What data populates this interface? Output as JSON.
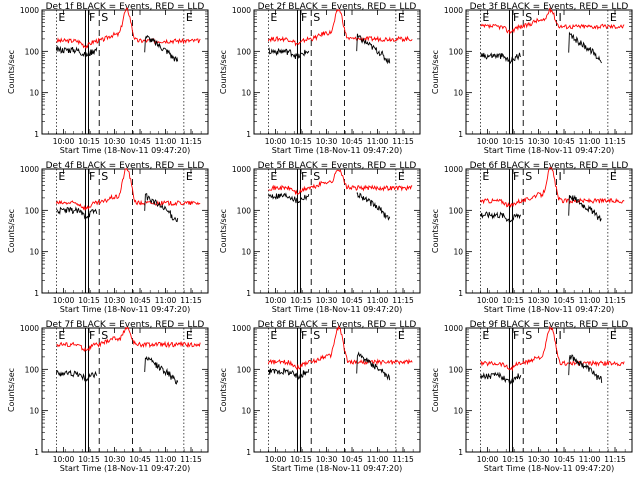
{
  "figure": {
    "legend_text": "BLACK = Events, RED = LLD",
    "series_colors": {
      "events": "#000000",
      "lld": "#ff0000"
    },
    "ylabel": "Counts/sec",
    "xlabel": "Start Time (18-Nov-11 09:47:20)"
  },
  "chart_data": [
    {
      "title": "Det 1f BLACK = Events, RED = LLD",
      "type": "line",
      "scale_y": "log",
      "ylim": [
        1,
        1000
      ],
      "yticks": [
        "1",
        "10",
        "100",
        "1000"
      ],
      "xticks": [
        "10:00",
        "10:15",
        "10:30",
        "10:45",
        "11:00",
        "11:15"
      ],
      "xlabel": "Start Time (18-Nov-11 09:47:20)",
      "ylabel": "Counts/sec",
      "markers": [
        "E",
        "F",
        "S",
        "E"
      ],
      "series": [
        {
          "color": "#ff0000",
          "base": 180,
          "peak": 1000
        },
        {
          "color": "#000000",
          "base": 110,
          "peak": 240
        }
      ]
    },
    {
      "title": "Det 2f BLACK = Events, RED = LLD",
      "type": "line",
      "scale_y": "log",
      "ylim": [
        1,
        1000
      ],
      "yticks": [
        "1",
        "10",
        "100",
        "1000"
      ],
      "xticks": [
        "10:00",
        "10:15",
        "10:30",
        "10:45",
        "11:00",
        "11:15"
      ],
      "xlabel": "Start Time (18-Nov-11 09:47:20)",
      "ylabel": "Counts/sec",
      "markers": [
        "E",
        "F",
        "S",
        "E"
      ],
      "series": [
        {
          "color": "#ff0000",
          "base": 200,
          "peak": 1000
        },
        {
          "color": "#000000",
          "base": 100,
          "peak": 230
        }
      ]
    },
    {
      "title": "Det 3f BLACK = Events, RED = LLD",
      "type": "line",
      "scale_y": "log",
      "ylim": [
        1,
        1000
      ],
      "yticks": [
        "1",
        "10",
        "100",
        "1000"
      ],
      "xticks": [
        "10:00",
        "10:15",
        "10:30",
        "10:45",
        "11:00",
        "11:15"
      ],
      "xlabel": "Start Time (18-Nov-11 09:47:20)",
      "ylabel": "Counts/sec",
      "markers": [
        "E",
        "F",
        "S",
        "I",
        "E"
      ],
      "series": [
        {
          "color": "#ff0000",
          "base": 400,
          "peak": 1000
        },
        {
          "color": "#000000",
          "base": 80,
          "peak": 250
        }
      ]
    },
    {
      "title": "Det 4f BLACK = Events, RED = LLD",
      "type": "line",
      "scale_y": "log",
      "ylim": [
        1,
        1000
      ],
      "yticks": [
        "1",
        "10",
        "100",
        "1000"
      ],
      "xticks": [
        "10:00",
        "10:15",
        "10:30",
        "10:45",
        "11:00",
        "11:15"
      ],
      "xlabel": "Start Time (18-Nov-11 09:47:20)",
      "ylabel": "Counts/sec",
      "markers": [
        "E",
        "F",
        "S",
        "E"
      ],
      "series": [
        {
          "color": "#ff0000",
          "base": 150,
          "peak": 1000
        },
        {
          "color": "#000000",
          "base": 100,
          "peak": 230
        }
      ]
    },
    {
      "title": "Det 5f BLACK = Events, RED = LLD",
      "type": "line",
      "scale_y": "log",
      "ylim": [
        1,
        1000
      ],
      "yticks": [
        "1",
        "10",
        "100",
        "1000"
      ],
      "xticks": [
        "10:00",
        "10:15",
        "10:30",
        "10:45",
        "11:00",
        "11:15"
      ],
      "xlabel": "Start Time (18-Nov-11 09:47:20)",
      "ylabel": "Counts/sec",
      "markers": [
        "E",
        "F",
        "S",
        "E"
      ],
      "series": [
        {
          "color": "#ff0000",
          "base": 350,
          "peak": 1000
        },
        {
          "color": "#000000",
          "base": 230,
          "peak": 260
        }
      ]
    },
    {
      "title": "Det 6f BLACK = Events, RED = LLD",
      "type": "line",
      "scale_y": "log",
      "ylim": [
        1,
        1000
      ],
      "yticks": [
        "1",
        "10",
        "100",
        "1000"
      ],
      "xticks": [
        "10:00",
        "10:15",
        "10:30",
        "10:45",
        "11:00",
        "11:15"
      ],
      "xlabel": "Start Time (18-Nov-11 09:47:20)",
      "ylabel": "Counts/sec",
      "markers": [
        "E",
        "F",
        "S",
        "I",
        "E"
      ],
      "series": [
        {
          "color": "#ff0000",
          "base": 170,
          "peak": 1000
        },
        {
          "color": "#000000",
          "base": 80,
          "peak": 240
        }
      ]
    },
    {
      "title": "Det 7f BLACK = Events, RED = LLD",
      "type": "line",
      "scale_y": "log",
      "ylim": [
        1,
        1000
      ],
      "yticks": [
        "1",
        "10",
        "100",
        "1000"
      ],
      "xticks": [
        "10:00",
        "10:15",
        "10:30",
        "10:45",
        "11:00",
        "11:15"
      ],
      "xlabel": "Start Time (18-Nov-11 09:47:20)",
      "ylabel": "Counts/sec",
      "markers": [
        "E",
        "F",
        "S",
        "E"
      ],
      "series": [
        {
          "color": "#ff0000",
          "base": 400,
          "peak": 1000
        },
        {
          "color": "#000000",
          "base": 80,
          "peak": 200
        }
      ]
    },
    {
      "title": "Det 8f BLACK = Events, RED = LLD",
      "type": "line",
      "scale_y": "log",
      "ylim": [
        1,
        1000
      ],
      "yticks": [
        "1",
        "10",
        "100",
        "1000"
      ],
      "xticks": [
        "10:00",
        "10:15",
        "10:30",
        "10:45",
        "11:00",
        "11:15"
      ],
      "xlabel": "Start Time (18-Nov-11 09:47:20)",
      "ylabel": "Counts/sec",
      "markers": [
        "E",
        "F",
        "S",
        "E"
      ],
      "series": [
        {
          "color": "#ff0000",
          "base": 150,
          "peak": 1000
        },
        {
          "color": "#000000",
          "base": 90,
          "peak": 240
        }
      ]
    },
    {
      "title": "Det 9f BLACK = Events, RED = LLD",
      "type": "line",
      "scale_y": "log",
      "ylim": [
        1,
        1000
      ],
      "yticks": [
        "1",
        "10",
        "100",
        "1000"
      ],
      "xticks": [
        "10:00",
        "10:15",
        "10:30",
        "10:45",
        "11:00",
        "11:15"
      ],
      "xlabel": "Start Time (18-Nov-11 09:47:20)",
      "ylabel": "Counts/sec",
      "markers": [
        "E",
        "F",
        "S",
        "I",
        "E"
      ],
      "series": [
        {
          "color": "#ff0000",
          "base": 140,
          "peak": 1000
        },
        {
          "color": "#000000",
          "base": 70,
          "peak": 220
        }
      ]
    }
  ]
}
